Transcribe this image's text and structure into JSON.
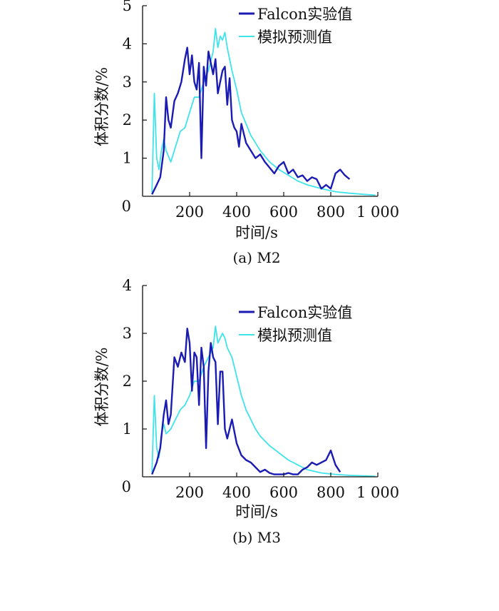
{
  "colors": {
    "experiment": "#1a1ab4",
    "simulation": "#3fe3ea",
    "axis": "#111111"
  },
  "chart_data": [
    {
      "type": "line",
      "caption": "(a) M2",
      "xlabel": "时间/s",
      "ylabel": "体积分数/%",
      "xlim": [
        0,
        1000
      ],
      "ylim": [
        0,
        5
      ],
      "xticks": [
        0,
        200,
        400,
        600,
        800,
        1000
      ],
      "xtick_labels": [
        "0",
        "200",
        "400",
        "600",
        "800",
        "1 000"
      ],
      "yticks": [
        1,
        2,
        3,
        4,
        5
      ],
      "ytick_labels": [
        "1",
        "2",
        "3",
        "4",
        "5"
      ],
      "legend_position": "top-right",
      "series": [
        {
          "name": "Falcon实验值",
          "color": "#1a1ab4",
          "x": [
            40,
            60,
            75,
            90,
            100,
            110,
            120,
            135,
            150,
            165,
            180,
            190,
            200,
            210,
            220,
            230,
            240,
            250,
            260,
            270,
            280,
            290,
            300,
            310,
            320,
            330,
            340,
            350,
            360,
            370,
            380,
            390,
            400,
            410,
            420,
            440,
            460,
            480,
            500,
            520,
            540,
            560,
            580,
            600,
            620,
            640,
            660,
            680,
            700,
            720,
            740,
            760,
            780,
            800,
            820,
            840,
            860,
            880
          ],
          "y": [
            0.05,
            0.3,
            0.5,
            1.2,
            2.6,
            2.0,
            1.8,
            2.5,
            2.7,
            3.0,
            3.6,
            3.9,
            3.2,
            3.7,
            3.0,
            2.8,
            3.5,
            1.0,
            3.4,
            2.9,
            3.8,
            3.5,
            3.2,
            3.6,
            2.7,
            3.0,
            3.3,
            3.4,
            2.4,
            3.1,
            2.0,
            1.8,
            1.7,
            1.3,
            1.9,
            1.4,
            1.2,
            1.0,
            1.1,
            0.9,
            0.75,
            0.6,
            0.8,
            0.9,
            0.6,
            0.7,
            0.5,
            0.55,
            0.4,
            0.5,
            0.45,
            0.2,
            0.3,
            0.2,
            0.6,
            0.7,
            0.55,
            0.45
          ]
        },
        {
          "name": "模拟预测值",
          "color": "#3fe3ea",
          "x": [
            40,
            50,
            60,
            70,
            80,
            90,
            100,
            120,
            140,
            160,
            180,
            200,
            220,
            240,
            260,
            280,
            300,
            310,
            320,
            330,
            340,
            350,
            360,
            380,
            400,
            420,
            440,
            460,
            480,
            500,
            540,
            580,
            620,
            660,
            700,
            760,
            820,
            880,
            940,
            990
          ],
          "y": [
            0.1,
            2.7,
            1.0,
            0.7,
            1.2,
            1.5,
            1.2,
            0.9,
            1.3,
            1.7,
            1.8,
            2.2,
            2.6,
            2.6,
            3.0,
            3.3,
            3.8,
            4.4,
            3.9,
            4.2,
            4.1,
            4.3,
            3.9,
            3.3,
            2.8,
            2.2,
            1.9,
            1.6,
            1.4,
            1.2,
            0.9,
            0.7,
            0.55,
            0.4,
            0.3,
            0.2,
            0.12,
            0.08,
            0.05,
            0.03
          ]
        }
      ]
    },
    {
      "type": "line",
      "caption": "(b) M3",
      "xlabel": "时间/s",
      "ylabel": "体积分数/%",
      "xlim": [
        0,
        1000
      ],
      "ylim": [
        0,
        4
      ],
      "xticks": [
        0,
        200,
        400,
        600,
        800,
        1000
      ],
      "xtick_labels": [
        "0",
        "200",
        "400",
        "600",
        "800",
        "1 000"
      ],
      "yticks": [
        1,
        2,
        3,
        4
      ],
      "ytick_labels": [
        "1",
        "2",
        "3",
        "4"
      ],
      "legend_position": "top-right",
      "series": [
        {
          "name": "Falcon实验值",
          "color": "#1a1ab4",
          "x": [
            40,
            60,
            75,
            90,
            100,
            110,
            120,
            135,
            150,
            165,
            180,
            190,
            200,
            210,
            220,
            230,
            240,
            250,
            260,
            270,
            280,
            290,
            300,
            310,
            320,
            330,
            340,
            350,
            360,
            380,
            400,
            420,
            440,
            460,
            480,
            500,
            520,
            540,
            560,
            580,
            600,
            620,
            640,
            660,
            680,
            700,
            720,
            740,
            760,
            780,
            800,
            820,
            840
          ],
          "y": [
            0.05,
            0.3,
            0.6,
            1.3,
            1.6,
            1.1,
            1.3,
            2.5,
            2.3,
            2.6,
            2.4,
            3.1,
            2.8,
            1.8,
            2.6,
            2.5,
            1.5,
            2.7,
            2.3,
            0.6,
            2.2,
            2.8,
            2.5,
            2.4,
            1.1,
            2.2,
            2.2,
            1.0,
            0.8,
            1.2,
            0.7,
            0.45,
            0.35,
            0.3,
            0.2,
            0.1,
            0.15,
            0.08,
            0.05,
            0.05,
            0.05,
            0.08,
            0.05,
            0.05,
            0.15,
            0.2,
            0.3,
            0.25,
            0.3,
            0.35,
            0.55,
            0.25,
            0.1
          ]
        },
        {
          "name": "模拟预测值",
          "color": "#3fe3ea",
          "x": [
            40,
            50,
            60,
            70,
            80,
            90,
            100,
            120,
            140,
            160,
            180,
            200,
            220,
            240,
            260,
            280,
            300,
            310,
            320,
            330,
            340,
            350,
            360,
            380,
            400,
            420,
            440,
            460,
            480,
            500,
            540,
            580,
            620,
            660,
            700,
            760,
            820,
            880,
            940,
            990
          ],
          "y": [
            0.1,
            1.7,
            0.6,
            0.4,
            0.9,
            1.1,
            0.9,
            1.0,
            1.2,
            1.4,
            1.5,
            1.7,
            2.0,
            2.0,
            2.3,
            2.5,
            2.7,
            3.15,
            2.8,
            2.9,
            3.0,
            2.9,
            2.7,
            2.5,
            2.1,
            1.7,
            1.4,
            1.2,
            1.0,
            0.85,
            0.65,
            0.5,
            0.35,
            0.25,
            0.15,
            0.08,
            0.05,
            0.03,
            0.02,
            0.01
          ]
        }
      ]
    }
  ]
}
